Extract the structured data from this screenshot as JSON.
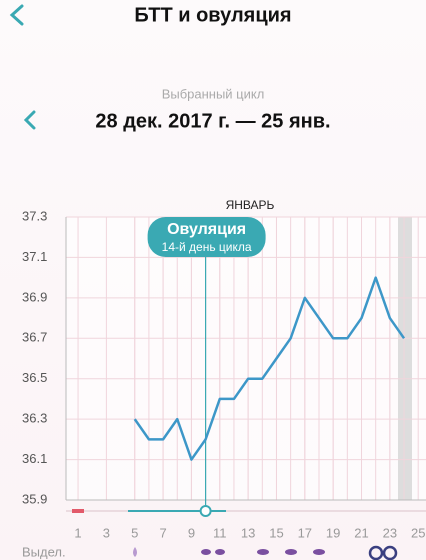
{
  "header": {
    "title": "БТТ и овуляция"
  },
  "cycle": {
    "label": "Выбранный цикл",
    "range": "28 дек. 2017 г. — 25 янв."
  },
  "chart_data": {
    "type": "line",
    "month_label": "ЯНВАРЬ",
    "x": [
      5,
      6,
      7,
      8,
      9,
      10,
      11,
      12,
      13,
      14,
      15,
      16,
      17,
      18,
      19,
      20,
      21,
      22,
      23,
      24
    ],
    "values": [
      36.3,
      36.2,
      36.2,
      36.3,
      36.1,
      36.2,
      36.4,
      36.4,
      36.5,
      36.5,
      36.6,
      36.7,
      36.9,
      36.8,
      36.7,
      36.7,
      36.8,
      37.0,
      36.8,
      36.7
    ],
    "color": "#3d97c8",
    "xlim": [
      0.15,
      25.55
    ],
    "xticks": [
      1,
      3,
      5,
      7,
      9,
      11,
      13,
      15,
      17,
      19,
      21,
      23,
      25
    ],
    "ylim": [
      35.9,
      37.3
    ],
    "yticks": [
      35.9,
      36.1,
      36.3,
      36.5,
      36.7,
      36.9,
      37.1,
      37.3
    ],
    "grid": true,
    "annotation": {
      "x": 10,
      "title": "Овуляция",
      "subtitle": "14-й день цикла",
      "color": "#3aa9b3"
    },
    "discharge_label": "Выдел."
  }
}
